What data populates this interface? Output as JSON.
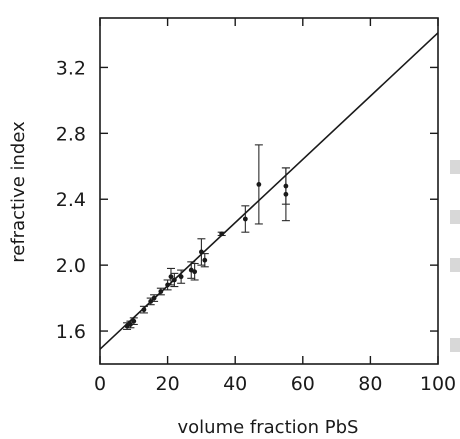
{
  "chart_data": {
    "type": "scatter",
    "title": "",
    "xlabel": "volume fraction PbS",
    "ylabel": "refractive index",
    "xlim": [
      0,
      100
    ],
    "ylim": [
      1.4,
      3.5
    ],
    "xticks": [
      0,
      20,
      40,
      60,
      80,
      100
    ],
    "yticks": [
      1.6,
      2.0,
      2.4,
      2.8,
      3.2
    ],
    "xtick_labels": [
      "0",
      "20",
      "40",
      "60",
      "80",
      "100"
    ],
    "ytick_labels": [
      "1.6",
      "2.0",
      "2.4",
      "2.8",
      "3.2"
    ],
    "grid": false,
    "series": [
      {
        "values": [
          {
            "x": 8,
            "y": 1.63,
            "err": 0.02
          },
          {
            "x": 9,
            "y": 1.64,
            "err": 0.02
          },
          {
            "x": 10,
            "y": 1.66,
            "err": 0.02
          },
          {
            "x": 13,
            "y": 1.73,
            "err": 0.02
          },
          {
            "x": 15,
            "y": 1.78,
            "err": 0.02
          },
          {
            "x": 16,
            "y": 1.8,
            "err": 0.02
          },
          {
            "x": 18,
            "y": 1.84,
            "err": 0.02
          },
          {
            "x": 20,
            "y": 1.88,
            "err": 0.03
          },
          {
            "x": 21,
            "y": 1.93,
            "err": 0.05
          },
          {
            "x": 22,
            "y": 1.91,
            "err": 0.04
          },
          {
            "x": 24,
            "y": 1.93,
            "err": 0.04
          },
          {
            "x": 27,
            "y": 1.97,
            "err": 0.05
          },
          {
            "x": 28,
            "y": 1.96,
            "err": 0.05
          },
          {
            "x": 30,
            "y": 2.08,
            "err": 0.08
          },
          {
            "x": 31,
            "y": 2.03,
            "err": 0.04
          },
          {
            "x": 36,
            "y": 2.19,
            "err": 0.01
          },
          {
            "x": 43,
            "y": 2.28,
            "err": 0.08
          },
          {
            "x": 47,
            "y": 2.49,
            "err": 0.24
          },
          {
            "x": 55,
            "y": 2.48,
            "err": 0.11
          },
          {
            "x": 55,
            "y": 2.43,
            "err": 0.16
          }
        ]
      },
      {
        "type": "line",
        "x": [
          0,
          100
        ],
        "y": [
          1.49,
          3.41
        ]
      }
    ]
  }
}
